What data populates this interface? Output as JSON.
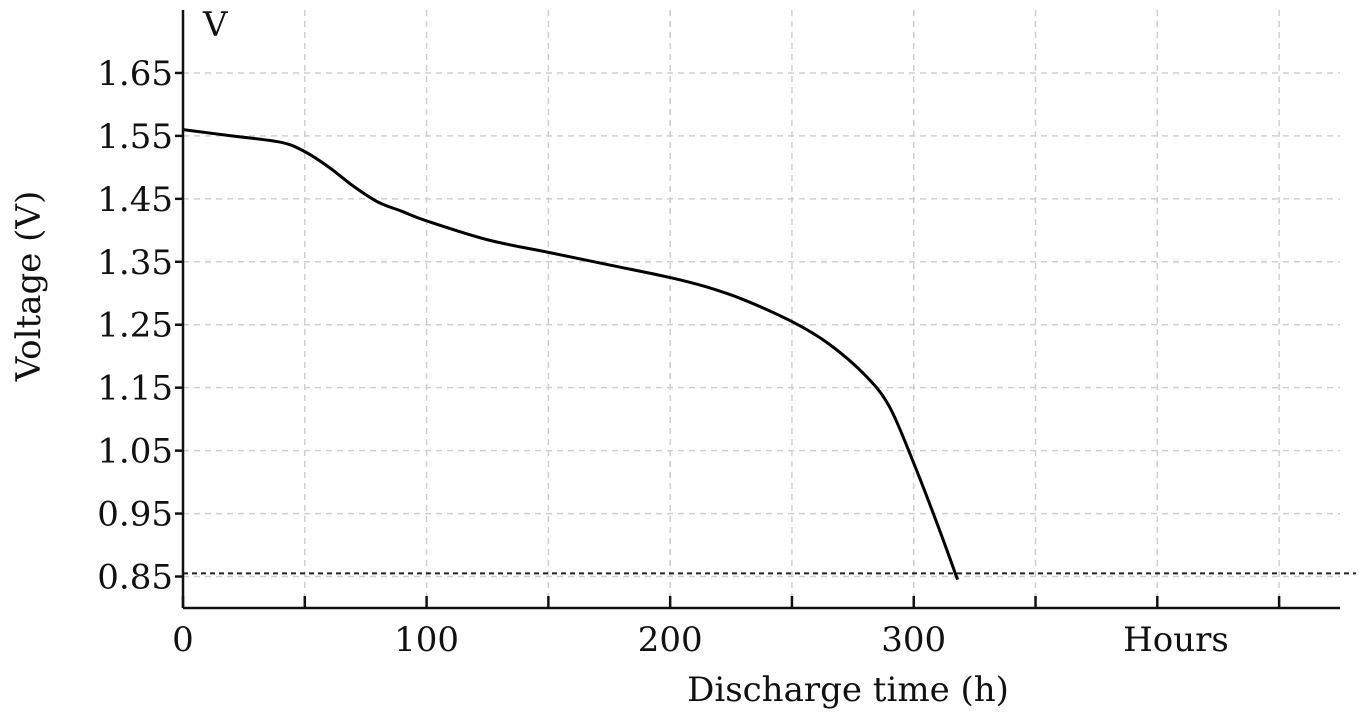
{
  "chart_data": {
    "type": "line",
    "xlabel": "Discharge time (h)",
    "ylabel": "Voltage (V)",
    "y_unit_label": "V",
    "x_unit_label": "Hours",
    "xlim": [
      0,
      475
    ],
    "ylim": [
      0.8,
      1.75
    ],
    "x_ticks": [
      0,
      100,
      200,
      300
    ],
    "x_tick_labels": [
      "0",
      "100",
      "200",
      "300"
    ],
    "x_minor_ticks": [
      50,
      150,
      250,
      350,
      400,
      450
    ],
    "y_ticks": [
      0.85,
      0.95,
      1.05,
      1.15,
      1.25,
      1.35,
      1.45,
      1.55,
      1.65
    ],
    "y_tick_labels": [
      "0.85",
      "0.95",
      "1.05",
      "1.15",
      "1.25",
      "1.35",
      "1.45",
      "1.55",
      "1.65"
    ],
    "grid": true,
    "cutoff_voltage": 0.855,
    "series": [
      {
        "x": [
          0,
          20,
          40,
          50,
          60,
          70,
          80,
          90,
          100,
          125,
          150,
          175,
          200,
          215,
          230,
          250,
          265,
          280,
          290,
          300,
          310,
          318
        ],
        "y": [
          1.56,
          1.55,
          1.54,
          1.525,
          1.5,
          1.47,
          1.445,
          1.43,
          1.415,
          1.385,
          1.365,
          1.345,
          1.325,
          1.31,
          1.29,
          1.255,
          1.22,
          1.17,
          1.12,
          1.03,
          0.93,
          0.845
        ]
      }
    ],
    "colors": {
      "line": "#000000",
      "grid": "#cfcfcf",
      "axis": "#111111"
    }
  }
}
